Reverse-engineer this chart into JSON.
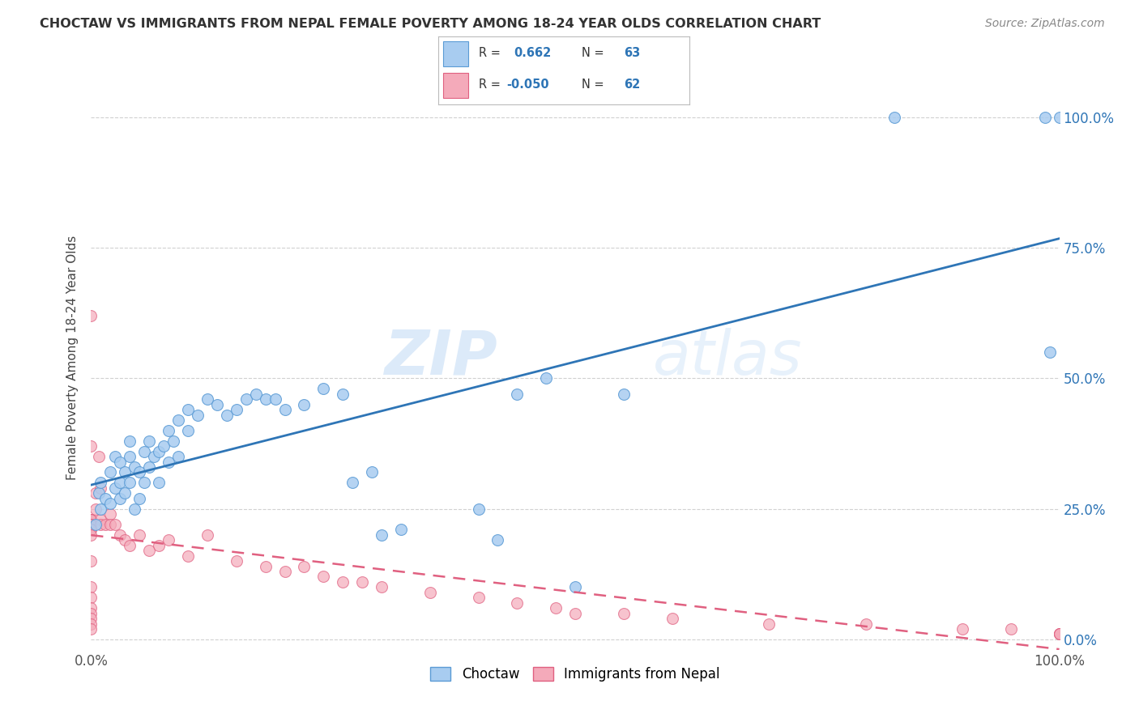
{
  "title": "CHOCTAW VS IMMIGRANTS FROM NEPAL FEMALE POVERTY AMONG 18-24 YEAR OLDS CORRELATION CHART",
  "source": "Source: ZipAtlas.com",
  "ylabel": "Female Poverty Among 18-24 Year Olds",
  "watermark_zip": "ZIP",
  "watermark_atlas": "atlas",
  "choctaw_R": 0.662,
  "choctaw_N": 63,
  "nepal_R": -0.05,
  "nepal_N": 62,
  "xlim": [
    0,
    1.0
  ],
  "ylim": [
    -0.02,
    1.1
  ],
  "x_tick_vals": [
    0,
    0.25,
    0.5,
    0.75,
    1.0
  ],
  "x_tick_labels": [
    "0.0%",
    "",
    "",
    "",
    "100.0%"
  ],
  "y_tick_vals": [
    0,
    0.25,
    0.5,
    0.75,
    1.0
  ],
  "y_tick_labels_right": [
    "0.0%",
    "25.0%",
    "50.0%",
    "75.0%",
    "100.0%"
  ],
  "choctaw_color": "#A8CCF0",
  "choctaw_edge_color": "#5B9BD5",
  "choctaw_line_color": "#2E75B6",
  "nepal_color": "#F4AABA",
  "nepal_edge_color": "#E06080",
  "nepal_line_color": "#E06080",
  "background_color": "#FFFFFF",
  "grid_color": "#CCCCCC",
  "legend_label_choctaw": "Choctaw",
  "legend_label_nepal": "Immigrants from Nepal",
  "choctaw_x": [
    0.005,
    0.008,
    0.01,
    0.01,
    0.015,
    0.02,
    0.02,
    0.025,
    0.025,
    0.03,
    0.03,
    0.03,
    0.035,
    0.035,
    0.04,
    0.04,
    0.04,
    0.045,
    0.045,
    0.05,
    0.05,
    0.055,
    0.055,
    0.06,
    0.06,
    0.065,
    0.07,
    0.07,
    0.075,
    0.08,
    0.08,
    0.085,
    0.09,
    0.09,
    0.1,
    0.1,
    0.11,
    0.12,
    0.13,
    0.14,
    0.15,
    0.16,
    0.17,
    0.18,
    0.19,
    0.2,
    0.22,
    0.24,
    0.26,
    0.27,
    0.29,
    0.3,
    0.32,
    0.4,
    0.42,
    0.44,
    0.47,
    0.5,
    0.55,
    0.83,
    0.985,
    0.99,
    1.0
  ],
  "choctaw_y": [
    0.22,
    0.28,
    0.25,
    0.3,
    0.27,
    0.26,
    0.32,
    0.29,
    0.35,
    0.27,
    0.3,
    0.34,
    0.28,
    0.32,
    0.3,
    0.35,
    0.38,
    0.25,
    0.33,
    0.27,
    0.32,
    0.3,
    0.36,
    0.33,
    0.38,
    0.35,
    0.3,
    0.36,
    0.37,
    0.34,
    0.4,
    0.38,
    0.35,
    0.42,
    0.4,
    0.44,
    0.43,
    0.46,
    0.45,
    0.43,
    0.44,
    0.46,
    0.47,
    0.46,
    0.46,
    0.44,
    0.45,
    0.48,
    0.47,
    0.3,
    0.32,
    0.2,
    0.21,
    0.25,
    0.19,
    0.47,
    0.5,
    0.1,
    0.47,
    1.0,
    1.0,
    0.55,
    1.0
  ],
  "nepal_x": [
    0.0,
    0.0,
    0.0,
    0.0,
    0.0,
    0.0,
    0.0,
    0.0,
    0.0,
    0.0,
    0.0,
    0.0,
    0.0,
    0.0,
    0.0,
    0.0,
    0.0,
    0.0,
    0.0,
    0.0,
    0.005,
    0.005,
    0.008,
    0.01,
    0.01,
    0.01,
    0.015,
    0.02,
    0.02,
    0.025,
    0.03,
    0.035,
    0.04,
    0.05,
    0.06,
    0.07,
    0.08,
    0.1,
    0.12,
    0.15,
    0.18,
    0.2,
    0.22,
    0.24,
    0.26,
    0.28,
    0.3,
    0.35,
    0.4,
    0.44,
    0.48,
    0.5,
    0.55,
    0.6,
    0.7,
    0.8,
    0.9,
    0.95,
    1.0,
    1.0,
    1.0,
    1.0
  ],
  "nepal_y": [
    0.23,
    0.23,
    0.23,
    0.23,
    0.22,
    0.22,
    0.22,
    0.21,
    0.21,
    0.2,
    0.15,
    0.1,
    0.08,
    0.06,
    0.05,
    0.04,
    0.03,
    0.02,
    0.62,
    0.37,
    0.28,
    0.25,
    0.35,
    0.29,
    0.23,
    0.22,
    0.22,
    0.24,
    0.22,
    0.22,
    0.2,
    0.19,
    0.18,
    0.2,
    0.17,
    0.18,
    0.19,
    0.16,
    0.2,
    0.15,
    0.14,
    0.13,
    0.14,
    0.12,
    0.11,
    0.11,
    0.1,
    0.09,
    0.08,
    0.07,
    0.06,
    0.05,
    0.05,
    0.04,
    0.03,
    0.03,
    0.02,
    0.02,
    0.01,
    0.01,
    0.01,
    0.01
  ]
}
